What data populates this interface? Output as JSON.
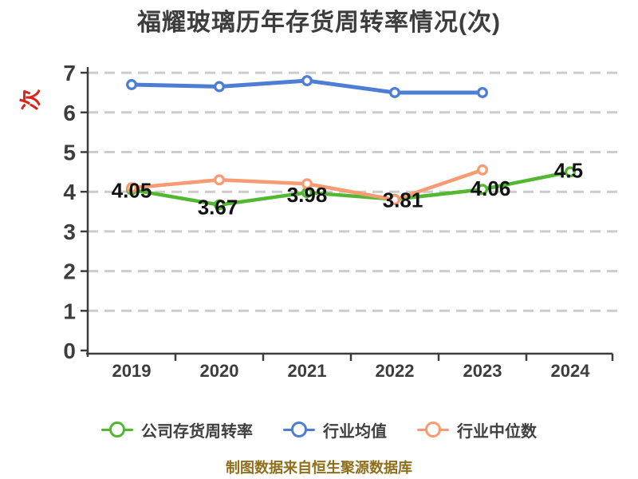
{
  "title": "福耀玻璃历年存货周转率情况(次)",
  "footer": "制图数据来自恒生聚源数据库",
  "colors": {
    "company_green": "#52b832",
    "industry_avg_blue": "#4d7ed3",
    "industry_median_orange": "#f89b72",
    "grid": "#cccccc",
    "axis": "#3d3d3d",
    "data_label": "#111111",
    "y_unit_red": "#d9251d",
    "footer_gold": "#8f6e1c",
    "title_text": "#3d3d3d"
  },
  "chart_data": {
    "type": "line",
    "title": "福耀玻璃历年存货周转率情况(次)",
    "categories": [
      "2019",
      "2020",
      "2021",
      "2022",
      "2023",
      "2024"
    ],
    "series": [
      {
        "name": "公司存货周转率",
        "color": "#52b832",
        "values": [
          4.05,
          3.67,
          3.98,
          3.81,
          4.06,
          4.5
        ],
        "labels": [
          "4.05",
          "3.67",
          "3.98",
          "3.81",
          "4.06",
          "4.5"
        ]
      },
      {
        "name": "行业均值",
        "color": "#4d7ed3",
        "values": [
          6.7,
          6.65,
          6.8,
          6.5,
          6.5,
          null
        ],
        "labels": []
      },
      {
        "name": "行业中位数",
        "color": "#f89b72",
        "values": [
          4.1,
          4.3,
          4.2,
          3.8,
          4.55,
          null
        ],
        "labels": []
      }
    ],
    "xlabel": "",
    "ylabel": "次",
    "ylim": [
      0,
      7
    ],
    "yticks": [
      0,
      1,
      2,
      3,
      4,
      5,
      6,
      7
    ],
    "grid": "horizontal-dashed",
    "legend_position": "bottom",
    "marker": "circle-white-filled"
  }
}
